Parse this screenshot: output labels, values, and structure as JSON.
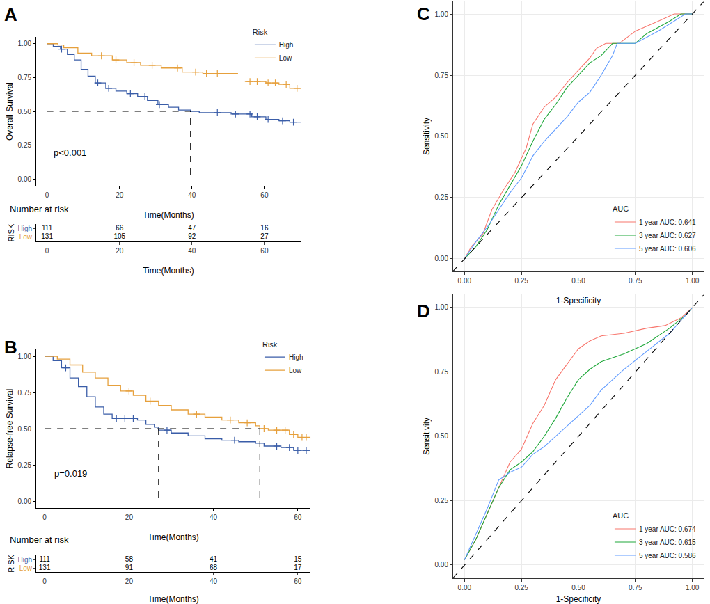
{
  "chart_data": [
    {
      "panel": "A",
      "type": "step",
      "xlabel": "Time(Months)",
      "ylabel": "Overall Survival",
      "xlim": [
        -3,
        70
      ],
      "ylim": [
        -0.05,
        1.05
      ],
      "xticks": [
        0,
        20,
        40,
        60
      ],
      "yticks": [
        {
          "value": 0,
          "label": "0.00"
        },
        {
          "value": 0.25,
          "label": "0.25"
        },
        {
          "value": 0.5,
          "label": "0.50"
        },
        {
          "value": 0.75,
          "label": "0.75"
        },
        {
          "value": 1,
          "label": "1.00"
        }
      ],
      "grid": false,
      "legend": "top right",
      "legend_title": "Risk",
      "annotations": [
        {
          "text": "p<0.001"
        }
      ],
      "series": [
        {
          "name": "High",
          "color": "#3A5DA8",
          "x": [
            0,
            1.7,
            3.7,
            5.6,
            7.5,
            9.4,
            11.3,
            13.3,
            16.2,
            19,
            22,
            25,
            27.7,
            30.6,
            33.5,
            36.3,
            39.6,
            42,
            50.8,
            56.5,
            60.4,
            64,
            67,
            70
          ],
          "values": [
            1,
            0.98,
            0.96,
            0.92,
            0.88,
            0.81,
            0.76,
            0.71,
            0.67,
            0.65,
            0.63,
            0.61,
            0.58,
            0.55,
            0.53,
            0.51,
            0.5,
            0.49,
            0.48,
            0.46,
            0.44,
            0.43,
            0.42,
            0.42
          ]
        },
        {
          "name": "Low",
          "color": "#E6A03C",
          "x": [
            0,
            3,
            4.6,
            8.5,
            12.3,
            18,
            22,
            25.8,
            31.5,
            37.3,
            43,
            52.7,
            53,
            54.6,
            60.4,
            64,
            67,
            70
          ],
          "values": [
            1,
            0.99,
            0.97,
            0.93,
            0.91,
            0.88,
            0.86,
            0.84,
            0.82,
            0.79,
            0.78,
            0.78,
            null,
            0.72,
            0.71,
            0.7,
            0.67,
            0.67
          ]
        },
        {
          "type": "scatter",
          "marker": "cross",
          "color": "#3A5DA8",
          "x": [
            4,
            14,
            17,
            23,
            27,
            31,
            47,
            52,
            56,
            58,
            61,
            65,
            68
          ],
          "values": [
            0.96,
            0.71,
            0.67,
            0.63,
            0.61,
            0.55,
            0.49,
            0.48,
            0.48,
            0.46,
            0.44,
            0.43,
            0.42
          ]
        },
        {
          "type": "scatter",
          "marker": "cross",
          "color": "#E6A03C",
          "x": [
            15,
            19,
            24,
            29,
            36,
            41,
            44,
            47,
            56,
            58,
            61,
            63,
            66,
            69
          ],
          "values": [
            0.91,
            0.88,
            0.86,
            0.84,
            0.82,
            0.79,
            0.78,
            0.78,
            0.72,
            0.72,
            0.71,
            0.71,
            0.7,
            0.67
          ]
        },
        {
          "type": "line",
          "line_style": "dashed",
          "color": "#000000",
          "x": [
            0,
            39.6,
            39.6
          ],
          "values": [
            0.5,
            0.5,
            0
          ]
        }
      ],
      "risk_table": {
        "title": "Number at risk",
        "ylabel": "RISK",
        "xlabel": "Time(Months)",
        "x": [
          0,
          20,
          40,
          60
        ],
        "xticks": [
          0,
          20,
          40,
          60
        ],
        "rows": [
          {
            "name": "High",
            "color": "#3A5DA8",
            "values": [
              111,
              66,
              47,
              16
            ]
          },
          {
            "name": "Low",
            "color": "#E6A03C",
            "values": [
              131,
              105,
              92,
              27
            ]
          }
        ]
      }
    },
    {
      "panel": "B",
      "type": "step",
      "xlabel": "Time(Months)",
      "ylabel": "Relapse-free Survival",
      "xlim": [
        -2,
        63
      ],
      "ylim": [
        -0.05,
        1.05
      ],
      "xticks": [
        0,
        20,
        40,
        60
      ],
      "yticks": [
        {
          "value": 0,
          "label": "0.00"
        },
        {
          "value": 0.25,
          "label": "0.25"
        },
        {
          "value": 0.5,
          "label": "0.50"
        },
        {
          "value": 0.75,
          "label": "0.75"
        },
        {
          "value": 1,
          "label": "1.00"
        }
      ],
      "grid": false,
      "legend": "top right",
      "legend_title": "Risk",
      "annotations": [
        {
          "text": "p=0.019"
        }
      ],
      "series": [
        {
          "name": "High",
          "color": "#3A5DA8",
          "x": [
            0,
            2,
            4,
            6,
            8,
            10,
            12,
            14,
            16,
            22,
            24,
            26,
            27,
            30,
            34,
            38,
            42,
            46,
            50,
            52,
            56,
            59,
            63
          ],
          "values": [
            1,
            0.97,
            0.92,
            0.85,
            0.79,
            0.72,
            0.65,
            0.6,
            0.57,
            0.56,
            0.53,
            0.51,
            0.49,
            0.47,
            0.45,
            0.43,
            0.42,
            0.41,
            0.4,
            0.38,
            0.37,
            0.35,
            0.35
          ]
        },
        {
          "name": "Low",
          "color": "#E6A03C",
          "x": [
            0,
            3,
            6,
            9,
            12,
            15,
            18,
            21,
            24,
            27,
            30,
            34,
            38,
            42,
            46,
            50,
            51,
            53,
            58,
            60,
            63
          ],
          "values": [
            1,
            0.98,
            0.94,
            0.89,
            0.85,
            0.8,
            0.76,
            0.73,
            0.69,
            0.66,
            0.63,
            0.6,
            0.58,
            0.56,
            0.54,
            0.52,
            0.5,
            0.49,
            0.46,
            0.44,
            0.43
          ]
        },
        {
          "type": "scatter",
          "marker": "cross",
          "color": "#3A5DA8",
          "x": [
            5,
            17,
            19,
            21,
            29,
            45,
            55,
            58,
            60,
            62
          ],
          "values": [
            0.92,
            0.57,
            0.57,
            0.57,
            0.49,
            0.42,
            0.38,
            0.37,
            0.35,
            0.35
          ]
        },
        {
          "type": "scatter",
          "marker": "cross",
          "color": "#E6A03C",
          "x": [
            20,
            25,
            36,
            44,
            48,
            52,
            55,
            57,
            59,
            61,
            62
          ],
          "values": [
            0.76,
            0.69,
            0.6,
            0.56,
            0.54,
            0.5,
            0.49,
            0.49,
            0.46,
            0.44,
            0.44
          ]
        },
        {
          "type": "line",
          "line_style": "dashed",
          "color": "#000000",
          "x": [
            0,
            51
          ],
          "values": [
            0.5,
            0.5
          ]
        },
        {
          "type": "line",
          "line_style": "dashed",
          "color": "#000000",
          "x": [
            27,
            27
          ],
          "values": [
            0.5,
            0
          ]
        },
        {
          "type": "line",
          "line_style": "dashed",
          "color": "#000000",
          "x": [
            51,
            51
          ],
          "values": [
            0.5,
            0
          ]
        }
      ],
      "risk_table": {
        "title": "Number at risk",
        "ylabel": "RISK",
        "xlabel": "Time(Months)",
        "x": [
          0,
          20,
          40,
          60
        ],
        "xticks": [
          0,
          20,
          40,
          60
        ],
        "rows": [
          {
            "name": "High",
            "color": "#3A5DA8",
            "values": [
              111,
              58,
              41,
              15
            ]
          },
          {
            "name": "Low",
            "color": "#E6A03C",
            "values": [
              131,
              91,
              68,
              17
            ]
          }
        ]
      }
    },
    {
      "panel": "C",
      "type": "line",
      "xlabel": "1-Specificity",
      "ylabel": "Sensitivity",
      "xlim": [
        -0.05,
        1.05
      ],
      "ylim": [
        -0.05,
        1.05
      ],
      "xticks": [
        {
          "value": 0,
          "label": "0.00"
        },
        {
          "value": 0.25,
          "label": "0.25"
        },
        {
          "value": 0.5,
          "label": "0.50"
        },
        {
          "value": 0.75,
          "label": "0.75"
        },
        {
          "value": 1,
          "label": "1.00"
        }
      ],
      "yticks": [
        {
          "value": 0,
          "label": "0.00"
        },
        {
          "value": 0.25,
          "label": "0.25"
        },
        {
          "value": 0.5,
          "label": "0.50"
        },
        {
          "value": 0.75,
          "label": "0.75"
        },
        {
          "value": 1,
          "label": "1.00"
        }
      ],
      "grid": true,
      "legend": "bottom right",
      "legend_title": "AUC",
      "series": [
        {
          "name": "1 year AUC: 0.641",
          "color": "#F8766D",
          "x": [
            0,
            0.03,
            0.08,
            0.12,
            0.17,
            0.22,
            0.27,
            0.3,
            0.35,
            0.4,
            0.45,
            0.5,
            0.55,
            0.58,
            0.62,
            0.68,
            0.75,
            0.85,
            0.92,
            1
          ],
          "values": [
            0,
            0.05,
            0.1,
            0.2,
            0.28,
            0.35,
            0.45,
            0.55,
            0.62,
            0.66,
            0.72,
            0.77,
            0.82,
            0.86,
            0.88,
            0.88,
            0.93,
            0.97,
            1,
            1
          ]
        },
        {
          "name": "3 year AUC: 0.627",
          "color": "#1FA83A",
          "x": [
            0,
            0.05,
            0.1,
            0.15,
            0.2,
            0.25,
            0.3,
            0.35,
            0.4,
            0.45,
            0.5,
            0.55,
            0.6,
            0.65,
            0.7,
            0.75,
            0.8,
            0.9,
            0.95,
            1
          ],
          "values": [
            0,
            0.05,
            0.12,
            0.22,
            0.3,
            0.38,
            0.48,
            0.57,
            0.63,
            0.7,
            0.75,
            0.8,
            0.83,
            0.88,
            0.88,
            0.88,
            0.92,
            0.97,
            1,
            1
          ]
        },
        {
          "name": "5 year AUC: 0.606",
          "color": "#619CFF",
          "x": [
            0,
            0.05,
            0.1,
            0.15,
            0.2,
            0.25,
            0.3,
            0.35,
            0.4,
            0.45,
            0.5,
            0.55,
            0.6,
            0.65,
            0.67,
            0.75,
            0.85,
            0.9,
            0.97,
            1
          ],
          "values": [
            0,
            0.07,
            0.13,
            0.2,
            0.27,
            0.33,
            0.42,
            0.48,
            0.53,
            0.58,
            0.64,
            0.68,
            0.75,
            0.83,
            0.88,
            0.88,
            0.93,
            0.96,
            1,
            1
          ]
        },
        {
          "type": "line",
          "line_style": "dashed",
          "color": "#000000",
          "x": [
            -0.05,
            1.05
          ],
          "values": [
            -0.05,
            1.05
          ]
        }
      ]
    },
    {
      "panel": "D",
      "type": "line",
      "xlabel": "1-Specificity",
      "ylabel": "Sensitivity",
      "xlim": [
        -0.05,
        1.05
      ],
      "ylim": [
        -0.05,
        1.05
      ],
      "xticks": [
        {
          "value": 0,
          "label": "0.00"
        },
        {
          "value": 0.25,
          "label": "0.25"
        },
        {
          "value": 0.5,
          "label": "0.50"
        },
        {
          "value": 0.75,
          "label": "0.75"
        },
        {
          "value": 1,
          "label": "1.00"
        }
      ],
      "yticks": [
        {
          "value": 0,
          "label": "0.00"
        },
        {
          "value": 0.25,
          "label": "0.25"
        },
        {
          "value": 0.5,
          "label": "0.50"
        },
        {
          "value": 0.75,
          "label": "0.75"
        },
        {
          "value": 1,
          "label": "1.00"
        }
      ],
      "grid": true,
      "legend": "bottom right",
      "legend_title": "AUC",
      "series": [
        {
          "name": "1 year AUC: 0.674",
          "color": "#F8766D",
          "x": [
            0,
            0.05,
            0.1,
            0.15,
            0.2,
            0.25,
            0.3,
            0.35,
            0.4,
            0.45,
            0.5,
            0.55,
            0.6,
            0.7,
            0.75,
            0.8,
            0.88,
            0.95,
            1
          ],
          "values": [
            0.02,
            0.1,
            0.2,
            0.3,
            0.4,
            0.45,
            0.55,
            0.62,
            0.72,
            0.78,
            0.84,
            0.87,
            0.89,
            0.9,
            0.91,
            0.92,
            0.93,
            0.96,
            1
          ]
        },
        {
          "name": "3 year AUC: 0.615",
          "color": "#1FA83A",
          "x": [
            0,
            0.05,
            0.1,
            0.15,
            0.2,
            0.25,
            0.3,
            0.35,
            0.4,
            0.45,
            0.5,
            0.55,
            0.6,
            0.7,
            0.8,
            0.9,
            0.97,
            1
          ],
          "values": [
            0.02,
            0.1,
            0.2,
            0.3,
            0.37,
            0.4,
            0.44,
            0.5,
            0.57,
            0.65,
            0.72,
            0.76,
            0.79,
            0.82,
            0.86,
            0.92,
            0.97,
            1
          ]
        },
        {
          "name": "5 year AUC: 0.586",
          "color": "#619CFF",
          "x": [
            0,
            0.05,
            0.1,
            0.15,
            0.2,
            0.25,
            0.3,
            0.35,
            0.4,
            0.45,
            0.5,
            0.55,
            0.6,
            0.7,
            0.8,
            0.9,
            0.97,
            1
          ],
          "values": [
            0.02,
            0.12,
            0.22,
            0.33,
            0.36,
            0.38,
            0.43,
            0.46,
            0.5,
            0.54,
            0.58,
            0.62,
            0.68,
            0.76,
            0.83,
            0.9,
            0.97,
            1
          ]
        },
        {
          "type": "line",
          "line_style": "dashed",
          "color": "#000000",
          "x": [
            -0.05,
            1.05
          ],
          "values": [
            -0.05,
            1.05
          ]
        }
      ]
    }
  ]
}
